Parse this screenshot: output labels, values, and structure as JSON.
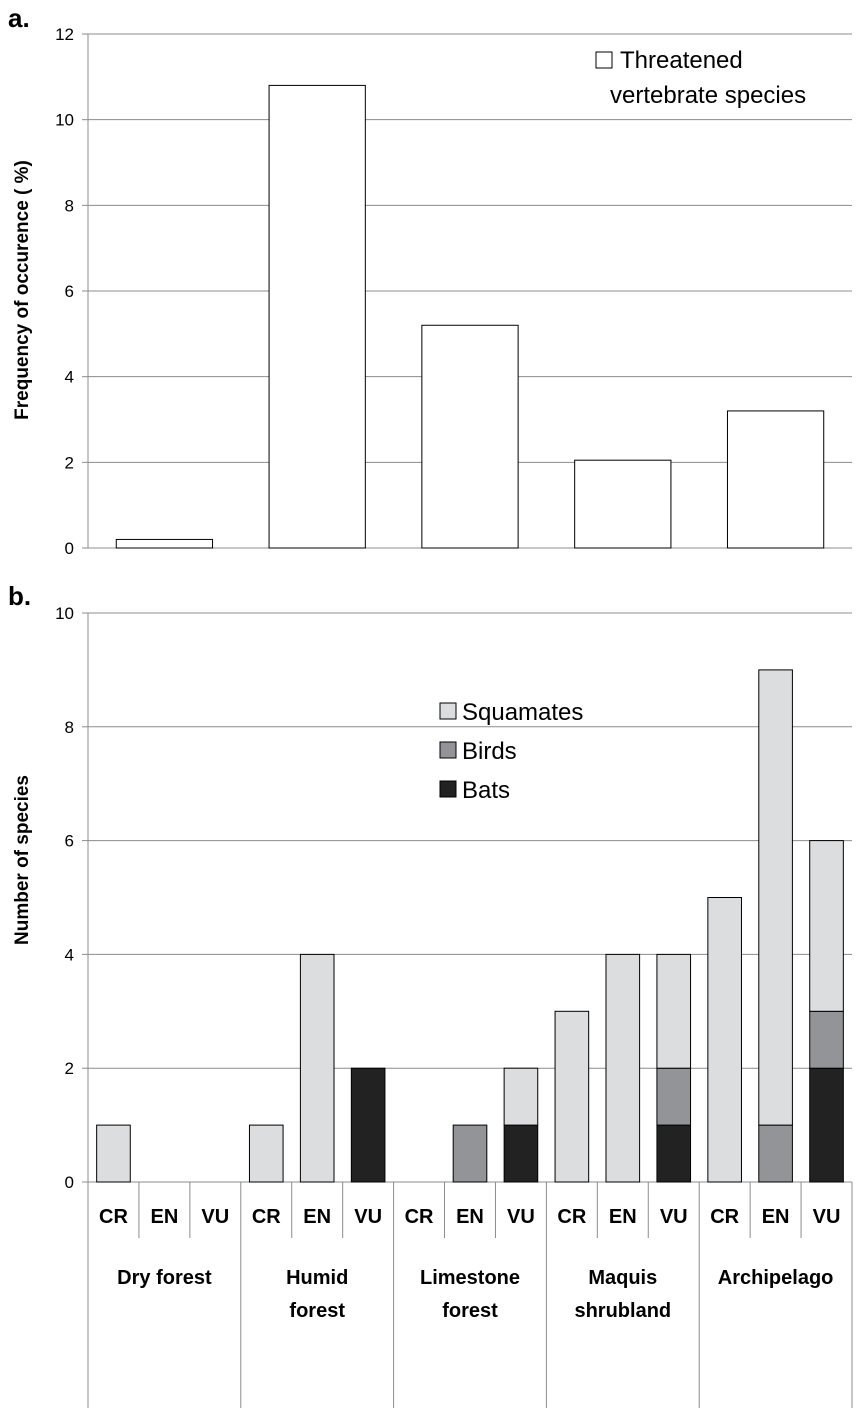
{
  "chart_data": [
    {
      "panel_label": "a.",
      "type": "bar",
      "categories": [
        "Dry forest",
        "Humid forest",
        "Limestone forest",
        "Maquis shrubland",
        "Archipelago"
      ],
      "series": [
        {
          "name": "Threatened vertebrate species",
          "legend_lines": [
            "Threatened",
            "vertebrate species"
          ],
          "values": [
            0.2,
            10.8,
            5.2,
            2.05,
            3.2
          ]
        }
      ],
      "ylabel": "Frequency of occurence ( %)",
      "ylim": [
        0,
        12
      ],
      "yticks": [
        "0",
        "2",
        "4",
        "6",
        "8",
        "10",
        "12"
      ],
      "grid": true,
      "legend": "top-right",
      "colors": {
        "bar_fill": "#ffffff"
      }
    },
    {
      "panel_label": "b.",
      "type": "bar",
      "stacked": true,
      "groups": [
        "Dry forest",
        "Humid forest",
        "Limestone forest",
        "Maquis shrubland",
        "Archipelago"
      ],
      "group_label_lines": [
        [
          "Dry forest"
        ],
        [
          "Humid",
          "forest"
        ],
        [
          "Limestone",
          "forest"
        ],
        [
          "Maquis",
          "shrubland"
        ],
        [
          "Archipelago"
        ]
      ],
      "subcategories": [
        "CR",
        "EN",
        "VU"
      ],
      "series": [
        {
          "name": "Bats",
          "color": "#222222",
          "values": [
            0,
            0,
            0,
            0,
            0,
            2,
            0,
            0,
            1,
            0,
            0,
            1,
            0,
            0,
            2
          ]
        },
        {
          "name": "Birds",
          "color": "#939498",
          "values": [
            0,
            0,
            0,
            0,
            0,
            0,
            0,
            1,
            0,
            0,
            0,
            1,
            0,
            1,
            1
          ]
        },
        {
          "name": "Squamates",
          "color": "#dcdddf",
          "values": [
            1,
            0,
            0,
            1,
            4,
            0,
            0,
            0,
            1,
            3,
            4,
            2,
            5,
            8,
            3
          ]
        }
      ],
      "legend_order": [
        "Squamates",
        "Birds",
        "Bats"
      ],
      "ylabel": "Number of species",
      "ylim": [
        0,
        10
      ],
      "yticks": [
        "0",
        "2",
        "4",
        "6",
        "8",
        "10"
      ],
      "grid": true,
      "legend": "top-center"
    }
  ]
}
